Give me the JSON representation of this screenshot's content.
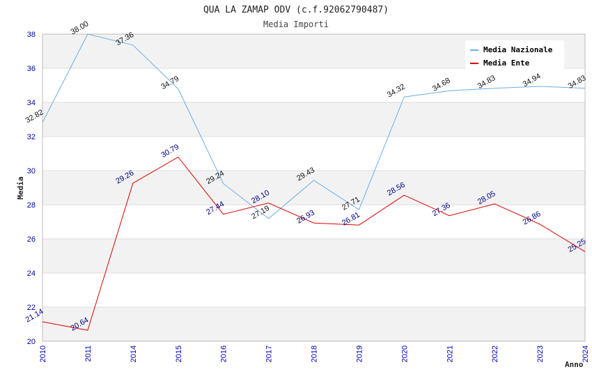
{
  "chart_data": {
    "type": "line",
    "title": "QUA LA ZAMAP ODV (c.f.92062790487)",
    "subtitle": "Media Importi",
    "xlabel": "Anno",
    "ylabel": "Media",
    "ylim": [
      20,
      38
    ],
    "yticks": [
      20,
      22,
      24,
      26,
      28,
      30,
      32,
      34,
      36,
      38
    ],
    "categories": [
      "2010",
      "2011",
      "2014",
      "2015",
      "2016",
      "2017",
      "2018",
      "2019",
      "2020",
      "2021",
      "2022",
      "2023",
      "2024"
    ],
    "grid": true,
    "legend_position": "top-right",
    "series": [
      {
        "name": "Media Nazionale",
        "color": "#6aaee8",
        "values": [
          32.82,
          38.0,
          37.36,
          34.79,
          29.24,
          27.19,
          29.43,
          27.71,
          34.32,
          34.68,
          34.83,
          34.94,
          34.83
        ],
        "labels": [
          "32.82",
          "38.00",
          "37.36",
          "34.79",
          "29.24",
          "27.19",
          "29.43",
          "27.71",
          "34.32",
          "34.68",
          "34.83",
          "34.94",
          "34.83"
        ]
      },
      {
        "name": "Media Ente",
        "color": "#dd0000",
        "values": [
          21.14,
          20.64,
          29.26,
          30.79,
          27.44,
          28.1,
          26.93,
          26.81,
          28.56,
          27.36,
          28.05,
          26.86,
          25.25
        ],
        "labels": [
          "21.14",
          "20.64",
          "29.26",
          "30.79",
          "27.44",
          "28.10",
          "26.93",
          "26.81",
          "28.56",
          "27.36",
          "28.05",
          "26.86",
          "25.25"
        ]
      }
    ]
  }
}
